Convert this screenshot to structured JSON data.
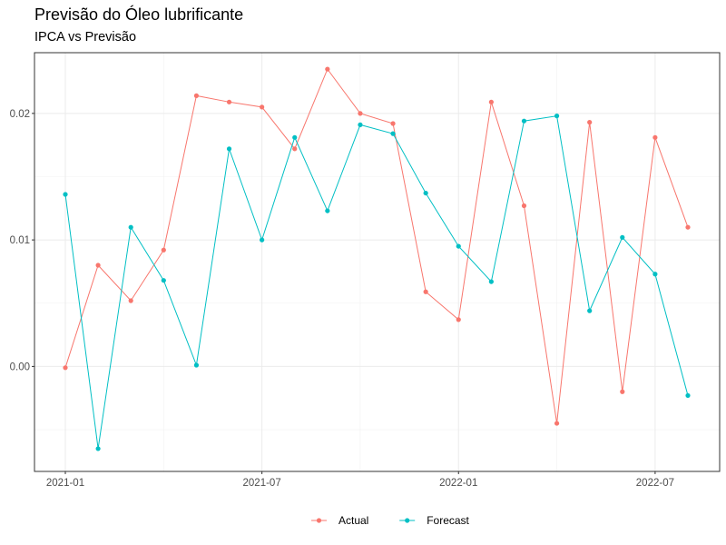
{
  "chart_data": {
    "type": "line",
    "title": "Previsão do Óleo lubrificante",
    "subtitle": "IPCA vs Previsão",
    "xlabel": "",
    "ylabel": "",
    "x": [
      "2021-01",
      "2021-02",
      "2021-03",
      "2021-04",
      "2021-05",
      "2021-06",
      "2021-07",
      "2021-08",
      "2021-09",
      "2021-10",
      "2021-11",
      "2021-12",
      "2022-01",
      "2022-02",
      "2022-03",
      "2022-04",
      "2022-05",
      "2022-06",
      "2022-07",
      "2022-08"
    ],
    "x_ticks": [
      "2021-01",
      "2021-07",
      "2022-01",
      "2022-07"
    ],
    "y_ticks": [
      0.0,
      0.01,
      0.02
    ],
    "y_tick_labels": [
      "0.00",
      "0.01",
      "0.02"
    ],
    "ylim": [
      -0.0083,
      0.0248
    ],
    "grid": true,
    "legend_position": "bottom",
    "series": [
      {
        "name": "Actual",
        "color": "#F8766D",
        "values": [
          -0.0001,
          0.008,
          0.0052,
          0.0092,
          0.0214,
          0.0209,
          0.0205,
          0.0172,
          0.0235,
          0.02,
          0.0192,
          0.0059,
          0.0037,
          0.0209,
          0.0127,
          -0.0045,
          0.0193,
          -0.002,
          0.0181,
          0.011
        ]
      },
      {
        "name": "Forecast",
        "color": "#00BFC4",
        "values": [
          0.0136,
          -0.0065,
          0.011,
          0.0068,
          0.0001,
          0.0172,
          0.01,
          0.0181,
          0.0123,
          0.0191,
          0.0184,
          0.0137,
          0.0095,
          0.0067,
          0.0194,
          0.0198,
          0.0044,
          0.0102,
          0.0073,
          -0.0023
        ]
      }
    ]
  }
}
